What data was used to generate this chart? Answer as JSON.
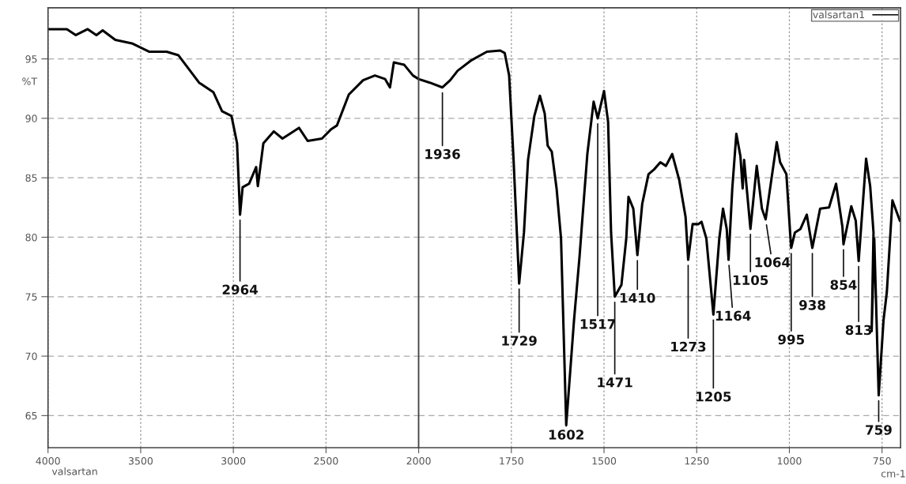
{
  "chart_data": [
    {
      "type": "line",
      "xlim": [
        4000,
        2000
      ],
      "ylim": [
        62.3,
        99.3
      ],
      "xticks": [
        4000,
        3500,
        3000,
        2500,
        2000
      ],
      "yticks": [
        65,
        70,
        75,
        80,
        85,
        90,
        95
      ],
      "ylabel": "%T",
      "grid": true,
      "series": [
        {
          "color": "#000000",
          "x": [
            4000,
            3898,
            3850,
            3786,
            3739,
            3705,
            3637,
            3547,
            3453,
            3360,
            3296,
            3185,
            3108,
            3061,
            3010,
            2980,
            2964,
            2950,
            2915,
            2877,
            2868,
            2838,
            2782,
            2735,
            2646,
            2599,
            2522,
            2471,
            2441,
            2377,
            2300,
            2236,
            2181,
            2155,
            2134,
            2078,
            2031,
            2000
          ],
          "values": [
            97.5,
            97.5,
            97.0,
            97.5,
            97.0,
            97.4,
            96.6,
            96.3,
            95.6,
            95.6,
            95.3,
            93.0,
            92.2,
            90.6,
            90.2,
            87.9,
            81.9,
            84.2,
            84.5,
            85.9,
            84.3,
            87.9,
            88.9,
            88.3,
            89.2,
            88.1,
            88.3,
            89.1,
            89.4,
            92.0,
            93.2,
            93.6,
            93.3,
            92.6,
            94.7,
            94.5,
            93.6,
            93.3
          ]
        }
      ],
      "annotations": [
        {
          "text": "2964",
          "x": 2964,
          "y": 81.9
        },
        "valsartan"
      ]
    },
    {
      "type": "line",
      "xlim": [
        2000,
        700
      ],
      "ylim": [
        62.3,
        99.3
      ],
      "xticks": [
        1750,
        1500,
        1250,
        1000,
        750
      ],
      "yticks": [
        65,
        70,
        75,
        80,
        85,
        90,
        95
      ],
      "xlabel": "cm-1",
      "tick_labels": "x",
      "grid": true,
      "legend": "top right",
      "series": [
        {
          "name": "valsartan1",
          "color": "#000000",
          "x": [
            2000,
            1970,
            1936,
            1915,
            1895,
            1857,
            1816,
            1780,
            1768,
            1756,
            1744,
            1729,
            1716,
            1705,
            1688,
            1673,
            1660,
            1652,
            1641,
            1628,
            1616,
            1602,
            1581,
            1566,
            1560,
            1545,
            1528,
            1517,
            1500,
            1489,
            1481,
            1471,
            1453,
            1440,
            1434,
            1421,
            1410,
            1397,
            1380,
            1365,
            1348,
            1333,
            1316,
            1297,
            1280,
            1273,
            1261,
            1246,
            1237,
            1224,
            1205,
            1189,
            1179,
            1169,
            1164,
            1154,
            1143,
            1132,
            1126,
            1122,
            1105,
            1088,
            1074,
            1064,
            1034,
            1025,
            1008,
            998,
            995,
            985,
            970,
            953,
            938,
            917,
            893,
            874,
            857,
            854,
            833,
            821,
            813,
            793,
            782,
            773,
            778,
            771,
            759,
            746,
            737,
            722,
            702
          ],
          "values": [
            93.3,
            93.0,
            92.6,
            93.2,
            94.0,
            94.9,
            95.6,
            95.7,
            95.5,
            93.6,
            86.5,
            76.1,
            80.4,
            86.5,
            90.2,
            91.9,
            90.4,
            87.7,
            87.2,
            84.1,
            79.9,
            64.2,
            73.0,
            78.4,
            80.9,
            87.0,
            91.4,
            90.0,
            92.3,
            89.7,
            80.4,
            75.0,
            76.0,
            79.9,
            83.4,
            82.4,
            78.5,
            82.8,
            85.3,
            85.7,
            86.3,
            86.0,
            87.0,
            84.8,
            81.7,
            78.1,
            81.1,
            81.1,
            81.3,
            79.9,
            73.5,
            79.9,
            82.4,
            80.7,
            78.1,
            84.1,
            88.7,
            86.8,
            84.1,
            86.5,
            80.7,
            86.0,
            82.4,
            81.5,
            88.0,
            86.3,
            85.3,
            80.4,
            79.1,
            80.4,
            80.7,
            81.9,
            79.1,
            82.4,
            82.5,
            84.5,
            80.9,
            79.4,
            82.6,
            81.4,
            78.0,
            86.6,
            84.3,
            80.4,
            72.1,
            79.9,
            66.7,
            73.0,
            75.4,
            83.1,
            81.4
          ]
        }
      ],
      "annotations": [
        {
          "text": "1936",
          "x": 1936,
          "y": 92.6
        },
        {
          "text": "1729",
          "x": 1729,
          "y": 76.1
        },
        {
          "text": "1602",
          "x": 1602,
          "y": 64.2
        },
        {
          "text": "1517",
          "x": 1517,
          "y": 90.0
        },
        {
          "text": "1471",
          "x": 1471,
          "y": 75.0
        },
        {
          "text": "1410",
          "x": 1410,
          "y": 78.5
        },
        {
          "text": "1273",
          "x": 1273,
          "y": 78.1
        },
        {
          "text": "1205",
          "x": 1205,
          "y": 73.5
        },
        {
          "text": "1164",
          "x": 1164,
          "y": 78.1
        },
        {
          "text": "1105",
          "x": 1105,
          "y": 80.7
        },
        {
          "text": "1064",
          "x": 1064,
          "y": 81.5
        },
        {
          "text": "995",
          "x": 995,
          "y": 79.1
        },
        {
          "text": "938",
          "x": 938,
          "y": 79.1
        },
        {
          "text": "854",
          "x": 854,
          "y": 79.4
        },
        {
          "text": "813",
          "x": 813,
          "y": 78.0
        },
        {
          "text": "759",
          "x": 759,
          "y": 66.7
        }
      ]
    }
  ]
}
